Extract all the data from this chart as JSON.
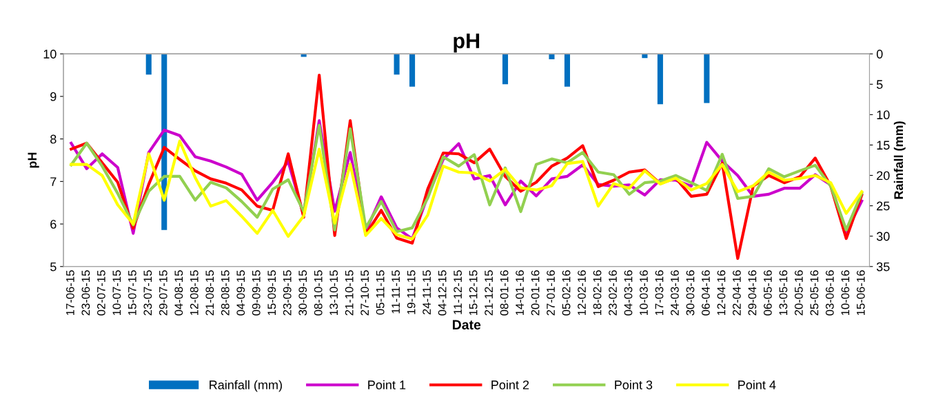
{
  "chart_data": {
    "type": "line",
    "title": "pH",
    "xlabel": "Date",
    "ylabel": "pH",
    "y2label": "Rainfall (mm)",
    "categories": [
      "17-06-15",
      "23-06-15",
      "02-07-15",
      "10-07-15",
      "15-07-15",
      "23-07-15",
      "29-07-15",
      "04-08-15",
      "12-08-15",
      "21-08-15",
      "28-08-15",
      "04-09-15",
      "09-09-15",
      "15-09-15",
      "23-09-15",
      "30-09-15",
      "08-10-15",
      "13-10-15",
      "21-10-15",
      "27-10-15",
      "05-11-15",
      "11-11-15",
      "19-11-15",
      "24-11-15",
      "04-12-15",
      "11-12-15",
      "15-12-15",
      "21-12-15",
      "08-01-16",
      "14-01-16",
      "20-01-16",
      "27-01-16",
      "05-02-16",
      "12-02-16",
      "18-02-16",
      "23-02-16",
      "04-03-16",
      "10-03-16",
      "17-03-16",
      "24-03-16",
      "30-03-16",
      "06-04-16",
      "12-04-16",
      "22-04-16",
      "29-04-16",
      "06-05-16",
      "13-05-16",
      "20-05-16",
      "25-05-16",
      "03-06-16",
      "10-06-16",
      "15-06-16"
    ],
    "series": [
      {
        "name": "Rainfall (mm)",
        "type": "bar",
        "axis": "y2",
        "color": "#0070c0",
        "values": [
          null,
          null,
          null,
          null,
          null,
          3.4,
          29,
          null,
          null,
          null,
          null,
          null,
          null,
          null,
          null,
          0.5,
          null,
          null,
          null,
          null,
          null,
          3.4,
          5.4,
          null,
          null,
          null,
          null,
          null,
          5.0,
          null,
          null,
          0.9,
          5.4,
          null,
          null,
          null,
          null,
          0.7,
          8.3,
          null,
          null,
          8.1,
          null,
          null,
          null,
          null,
          null,
          null,
          null,
          null,
          null,
          null
        ]
      },
      {
        "name": "Point 1",
        "color": "#cc00cc",
        "values": [
          7.9,
          7.3,
          7.65,
          7.33,
          5.78,
          7.68,
          8.21,
          8.08,
          7.58,
          7.48,
          7.34,
          7.17,
          6.56,
          6.98,
          7.47,
          6.2,
          8.43,
          6.3,
          7.68,
          5.83,
          6.64,
          5.91,
          5.65,
          6.66,
          7.52,
          7.89,
          7.06,
          7.14,
          6.45,
          7.01,
          6.66,
          7.06,
          7.12,
          7.39,
          6.93,
          6.89,
          6.92,
          6.68,
          7.04,
          7.03,
          6.89,
          7.92,
          7.48,
          7.14,
          6.65,
          6.7,
          6.84,
          6.84,
          7.16,
          6.92,
          5.81,
          6.54
        ]
      },
      {
        "name": "Point 2",
        "color": "#ff0000",
        "values": [
          7.76,
          7.9,
          7.44,
          6.98,
          5.9,
          6.93,
          7.8,
          7.52,
          7.25,
          7.06,
          6.96,
          6.8,
          6.42,
          6.32,
          7.65,
          6.16,
          9.5,
          5.73,
          8.43,
          5.75,
          6.32,
          5.67,
          5.55,
          6.82,
          7.67,
          7.65,
          7.44,
          7.76,
          7.12,
          6.77,
          6.98,
          7.36,
          7.55,
          7.84,
          6.88,
          7.03,
          7.22,
          7.27,
          6.95,
          7.08,
          6.65,
          6.7,
          7.43,
          5.19,
          6.89,
          7.14,
          6.97,
          7.11,
          7.55,
          6.89,
          5.66,
          6.68
        ]
      },
      {
        "name": "Point 3",
        "color": "#92d050",
        "values": [
          7.39,
          7.9,
          7.36,
          6.72,
          5.98,
          6.77,
          7.12,
          7.12,
          6.56,
          6.98,
          6.85,
          6.53,
          6.16,
          6.82,
          7.04,
          6.29,
          8.32,
          5.86,
          8.24,
          5.91,
          6.53,
          5.82,
          5.91,
          6.61,
          7.58,
          7.36,
          7.63,
          6.45,
          7.32,
          6.29,
          7.4,
          7.53,
          7.44,
          7.68,
          7.22,
          7.16,
          6.7,
          6.97,
          7.01,
          7.14,
          6.97,
          6.79,
          7.64,
          6.6,
          6.65,
          7.3,
          7.11,
          7.25,
          7.38,
          6.89,
          5.86,
          6.73
        ]
      },
      {
        "name": "Point 4",
        "color": "#ffff00",
        "values": [
          7.4,
          7.4,
          7.14,
          6.45,
          6.0,
          7.65,
          6.56,
          7.95,
          7.09,
          6.42,
          6.55,
          6.18,
          5.78,
          6.32,
          5.71,
          6.19,
          7.76,
          6.02,
          7.41,
          5.73,
          6.13,
          5.75,
          5.65,
          6.21,
          7.36,
          7.22,
          7.2,
          7.01,
          7.28,
          6.85,
          6.8,
          6.9,
          7.42,
          7.47,
          6.42,
          6.95,
          6.84,
          7.25,
          6.94,
          7.08,
          6.8,
          6.95,
          7.4,
          6.76,
          6.9,
          7.22,
          7.03,
          7.07,
          7.14,
          6.97,
          6.25,
          6.76
        ]
      }
    ],
    "ylim": [
      5,
      10
    ],
    "yticks": [
      5,
      6,
      7,
      8,
      9,
      10
    ],
    "y2lim": [
      35,
      0
    ],
    "y2ticks": [
      0,
      5,
      10,
      15,
      20,
      25,
      30,
      35
    ],
    "grid": false,
    "legend": "bottom",
    "marker": "none",
    "line_style": "solid"
  }
}
